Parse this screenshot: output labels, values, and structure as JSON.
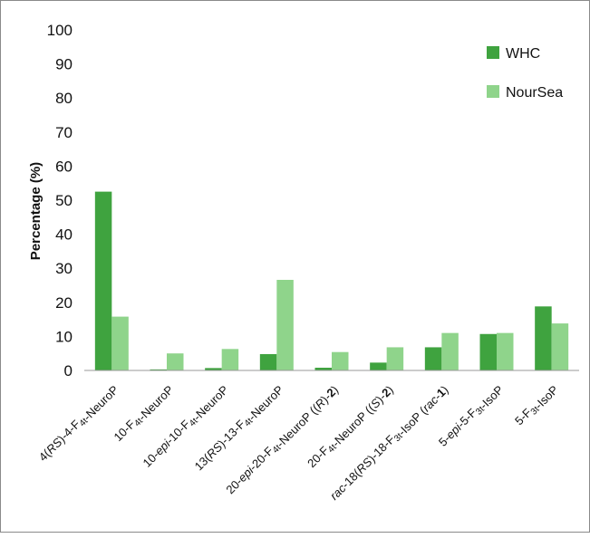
{
  "chart_data": {
    "type": "bar",
    "ylabel": "Percentage (%)",
    "xlabel": "",
    "ylim": [
      0,
      100
    ],
    "yticks": [
      0,
      10,
      20,
      30,
      40,
      50,
      60,
      70,
      80,
      90,
      100
    ],
    "grid": false,
    "legend_position": "top-right",
    "categories": [
      "4(RS)-4-F4t-NeuroP",
      "10-F4t-NeuroP",
      "10-epi-10-F4t-NeuroP",
      "13(RS)-13-F4t-NeuroP",
      "20-epi-20-F4t-NeuroP ((R)-2)",
      "20-F4t-NeuroP ((S)-2)",
      "rac-18(RS)-18-F3t-IsoP (rac-1)",
      "5-epi-5-F3t-IsoP",
      "5-F3t-IsoP"
    ],
    "series": [
      {
        "name": "WHC",
        "color": "#3fa33f",
        "values": [
          52.5,
          0.3,
          0.7,
          4.8,
          0.8,
          2.3,
          6.8,
          10.7,
          18.8
        ]
      },
      {
        "name": "NourSea",
        "color": "#8fd48b",
        "values": [
          15.8,
          5.0,
          6.3,
          26.6,
          5.4,
          6.8,
          11.0,
          11.0,
          13.8
        ]
      }
    ]
  }
}
